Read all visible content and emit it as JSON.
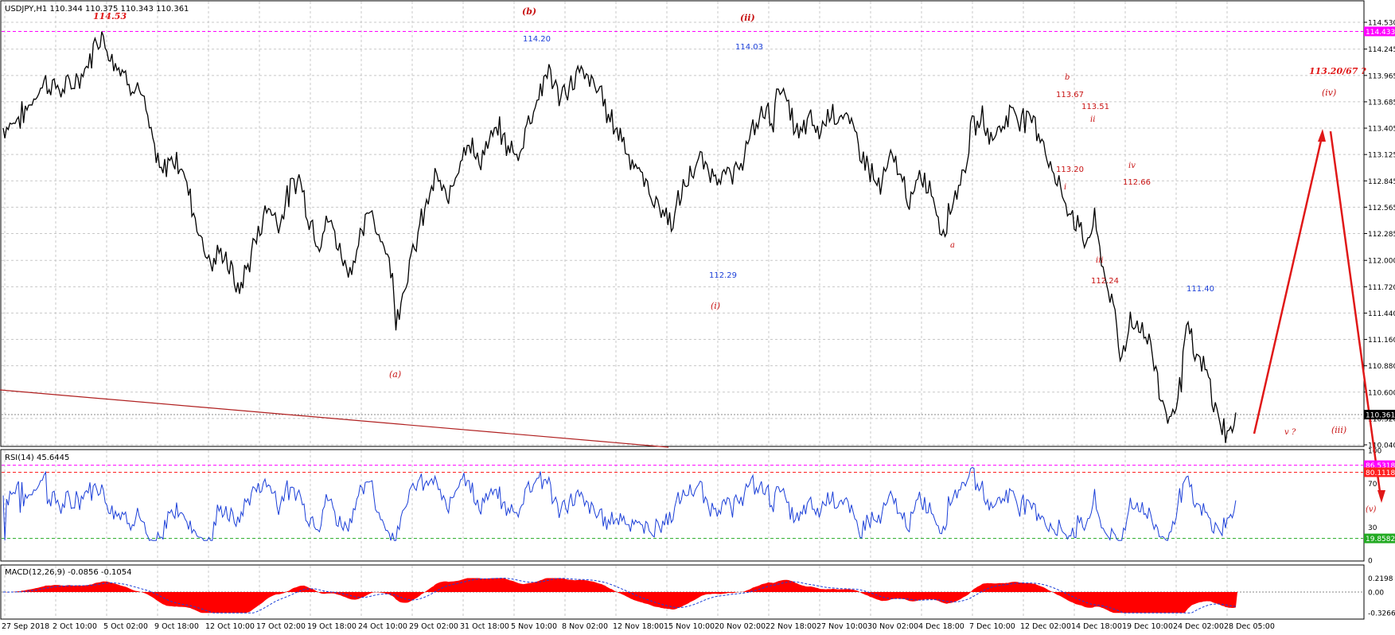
{
  "chart_data": [
    {
      "type": "line",
      "subtype": "candlestick-like price line",
      "title": "USDJPY,H1  110.344 110.375 110.343 110.361",
      "symbol": "USDJPY,H1",
      "ohlc": {
        "open": "110.344",
        "high": "110.375",
        "low": "110.343",
        "close": "110.361"
      },
      "ylim": [
        110.04,
        114.53
      ],
      "y_ticks": [
        "114.530",
        "114.245",
        "113.965",
        "113.685",
        "113.405",
        "113.125",
        "112.845",
        "112.565",
        "112.285",
        "112.000",
        "111.720",
        "111.440",
        "111.160",
        "110.880",
        "110.600",
        "110.320",
        "110.040"
      ],
      "x_ticks": [
        "27 Sep 2018",
        "2 Oct 10:00",
        "5 Oct 02:00",
        "9 Oct 18:00",
        "12 Oct 10:00",
        "17 Oct 02:00",
        "19 Oct 18:00",
        "24 Oct 10:00",
        "29 Oct 02:00",
        "31 Oct 18:00",
        "5 Nov 10:00",
        "8 Nov 02:00",
        "12 Nov 18:00",
        "15 Nov 10:00",
        "20 Nov 02:00",
        "22 Nov 18:00",
        "27 Nov 10:00",
        "30 Nov 02:00",
        "4 Dec 18:00",
        "7 Dec 10:00",
        "12 Dec 02:00",
        "14 Dec 18:00",
        "19 Dec 10:00",
        "24 Dec 02:00",
        "28 Dec 05:00"
      ],
      "price_path": [
        [
          0,
          113.4
        ],
        [
          4,
          113.55
        ],
        [
          8,
          113.9
        ],
        [
          12,
          113.8
        ],
        [
          16,
          114.0
        ],
        [
          19,
          114.42
        ],
        [
          21,
          114.2
        ],
        [
          24,
          113.95
        ],
        [
          27,
          113.8
        ],
        [
          29,
          113.3
        ],
        [
          31,
          112.9
        ],
        [
          33,
          113.1
        ],
        [
          35,
          113.0
        ],
        [
          37,
          112.6
        ],
        [
          39,
          112.2
        ],
        [
          41,
          111.95
        ],
        [
          43,
          112.1
        ],
        [
          45,
          111.85
        ],
        [
          46,
          111.65
        ],
        [
          48,
          111.95
        ],
        [
          50,
          112.3
        ],
        [
          52,
          112.6
        ],
        [
          54,
          112.4
        ],
        [
          56,
          112.7
        ],
        [
          58,
          112.9
        ],
        [
          60,
          112.45
        ],
        [
          62,
          112.2
        ],
        [
          64,
          112.45
        ],
        [
          66,
          112.1
        ],
        [
          68,
          111.9
        ],
        [
          70,
          112.2
        ],
        [
          72,
          112.55
        ],
        [
          74,
          112.25
        ],
        [
          76,
          111.95
        ],
        [
          77,
          111.4
        ],
        [
          79,
          111.8
        ],
        [
          81,
          112.2
        ],
        [
          83,
          112.6
        ],
        [
          85,
          112.9
        ],
        [
          87,
          112.6
        ],
        [
          89,
          113.0
        ],
        [
          91,
          113.3
        ],
        [
          93,
          113.05
        ],
        [
          95,
          113.2
        ],
        [
          97,
          113.4
        ],
        [
          99,
          113.2
        ],
        [
          101,
          113.1
        ],
        [
          103,
          113.5
        ],
        [
          105,
          113.75
        ],
        [
          107,
          114.05
        ],
        [
          109,
          113.7
        ],
        [
          111,
          113.85
        ],
        [
          113,
          114.0
        ],
        [
          115,
          113.9
        ],
        [
          117,
          113.8
        ],
        [
          119,
          113.5
        ],
        [
          121,
          113.35
        ],
        [
          123,
          113.1
        ],
        [
          125,
          112.9
        ],
        [
          127,
          112.7
        ],
        [
          129,
          112.55
        ],
        [
          131,
          112.4
        ],
        [
          133,
          112.7
        ],
        [
          135,
          112.95
        ],
        [
          137,
          113.05
        ],
        [
          139,
          112.9
        ],
        [
          141,
          112.95
        ],
        [
          143,
          112.85
        ],
        [
          145,
          113.1
        ],
        [
          147,
          113.35
        ],
        [
          149,
          113.6
        ],
        [
          151,
          113.5
        ],
        [
          152,
          113.9
        ],
        [
          154,
          113.6
        ],
        [
          156,
          113.3
        ],
        [
          158,
          113.5
        ],
        [
          160,
          113.35
        ],
        [
          162,
          113.6
        ],
        [
          164,
          113.55
        ],
        [
          166,
          113.45
        ],
        [
          168,
          113.2
        ],
        [
          170,
          112.95
        ],
        [
          172,
          112.75
        ],
        [
          174,
          113.1
        ],
        [
          176,
          112.9
        ],
        [
          178,
          112.6
        ],
        [
          180,
          112.9
        ],
        [
          182,
          112.75
        ],
        [
          184,
          112.3
        ],
        [
          186,
          112.6
        ],
        [
          188,
          112.9
        ],
        [
          190,
          113.4
        ],
        [
          192,
          113.5
        ],
        [
          194,
          113.3
        ],
        [
          196,
          113.45
        ],
        [
          198,
          113.6
        ],
        [
          200,
          113.5
        ],
        [
          202,
          113.5
        ],
        [
          204,
          113.25
        ],
        [
          206,
          112.9
        ],
        [
          208,
          112.65
        ],
        [
          210,
          112.45
        ],
        [
          212,
          112.2
        ],
        [
          214,
          112.4
        ],
        [
          216,
          111.85
        ],
        [
          218,
          111.4
        ],
        [
          219,
          110.95
        ],
        [
          221,
          111.35
        ],
        [
          223,
          111.3
        ],
        [
          225,
          111.1
        ],
        [
          227,
          110.55
        ],
        [
          229,
          110.3
        ],
        [
          231,
          110.75
        ],
        [
          232,
          111.3
        ],
        [
          234,
          110.95
        ],
        [
          236,
          110.8
        ],
        [
          238,
          110.35
        ],
        [
          240,
          110.15
        ],
        [
          242,
          110.3
        ]
      ]
    },
    {
      "type": "line",
      "title": "RSI(14) 45.6445",
      "series": [
        {
          "name": "RSI(14)",
          "last": "45.6445"
        }
      ],
      "levels": [
        "86.5318",
        "80.1118",
        "19.8582"
      ],
      "y_ticks": [
        "100",
        "70",
        "30",
        "0"
      ]
    },
    {
      "type": "area",
      "title": "MACD(12,26,9) -0.0856 -0.1054",
      "series": [
        {
          "name": "MACD(12,26,9)",
          "values": [
            "-0.0856",
            "-0.1054"
          ]
        }
      ],
      "y_ticks": [
        "0.2198",
        "0.00",
        "-0.3266"
      ]
    }
  ],
  "price_labels": {
    "current": "110.361",
    "top_line": "114.433",
    "rsi_hi": "86.5318",
    "rsi_mid": "80.1118",
    "rsi_lo": "19.8582"
  },
  "annotations": [
    {
      "text": "114.53",
      "color": "#e01818"
    },
    {
      "text": "(b)",
      "color": "#c81414"
    },
    {
      "text": "114.20",
      "color": "#1b3fd8"
    },
    {
      "text": "(ii)",
      "color": "#c81414"
    },
    {
      "text": "114.03",
      "color": "#1b3fd8"
    },
    {
      "text": "b",
      "color": "#c81414"
    },
    {
      "text": "113.67",
      "color": "#c81414"
    },
    {
      "text": "113.51",
      "color": "#c81414"
    },
    {
      "text": "ii",
      "color": "#c81414"
    },
    {
      "text": "113.20/67 ?",
      "color": "#e01818"
    },
    {
      "text": "(iv)",
      "color": "#c81414"
    },
    {
      "text": "iv",
      "color": "#c81414"
    },
    {
      "text": "113.20",
      "color": "#c81414"
    },
    {
      "text": "i",
      "color": "#c81414"
    },
    {
      "text": "112.66",
      "color": "#c81414"
    },
    {
      "text": "a",
      "color": "#c81414"
    },
    {
      "text": "iii",
      "color": "#c81414"
    },
    {
      "text": "112.24",
      "color": "#c81414"
    },
    {
      "text": "112.29",
      "color": "#1b3fd8"
    },
    {
      "text": "(i)",
      "color": "#c81414"
    },
    {
      "text": "111.40",
      "color": "#1b3fd8"
    },
    {
      "text": "(a)",
      "color": "#c81414"
    },
    {
      "text": "v ?",
      "color": "#c81414"
    },
    {
      "text": "(iii)",
      "color": "#c81414"
    },
    {
      "text": "(v)",
      "color": "#c81414"
    }
  ],
  "colors": {
    "price": "#000000",
    "rsi": "#1b3fd8",
    "macd_hist": "#ff0000",
    "grid": "#c8c8c8",
    "level_magenta": "#ff00ff",
    "level_red": "#ff2020",
    "level_green": "#22aa22",
    "projection": "#e01818"
  }
}
